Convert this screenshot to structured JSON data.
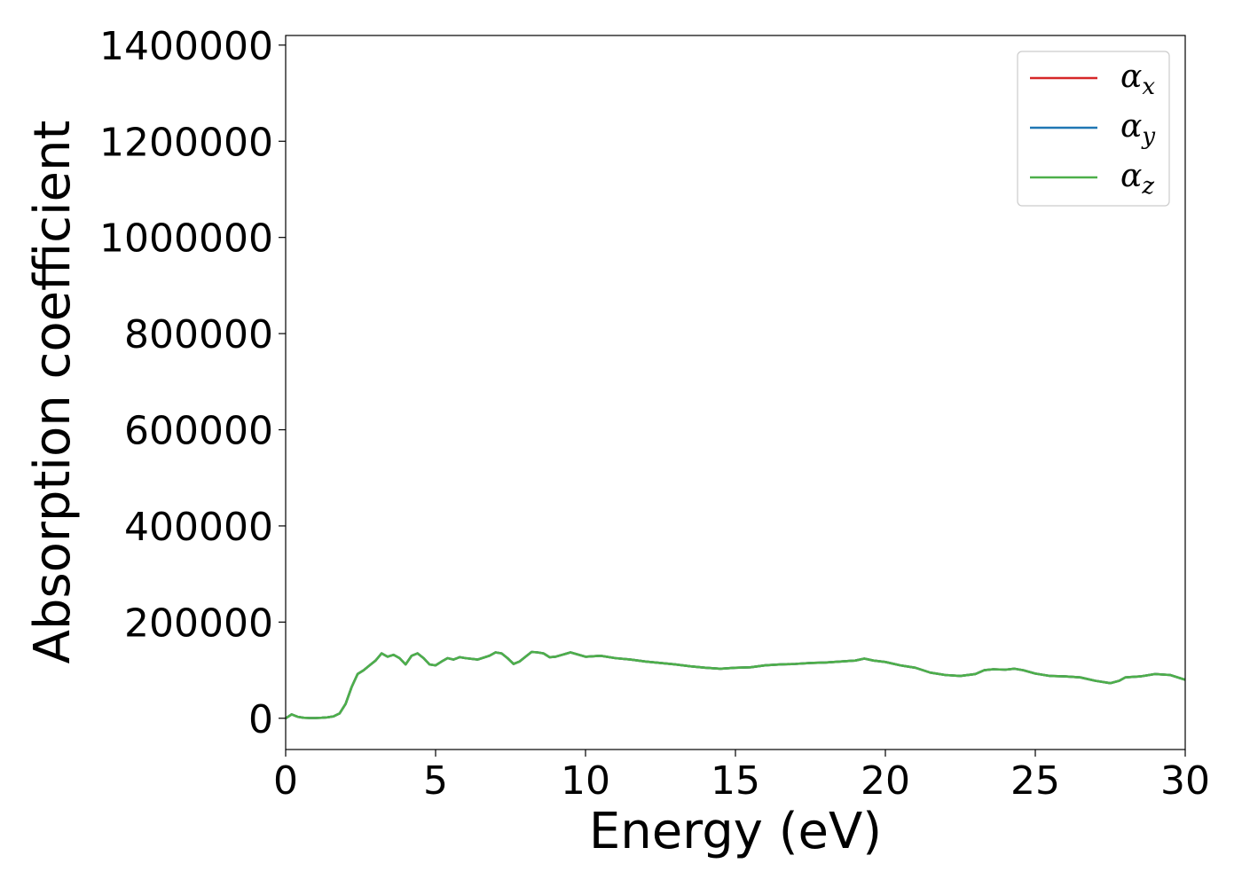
{
  "chart_data": {
    "type": "line",
    "title": "",
    "xlabel": "Energy (eV)",
    "ylabel": "Absorption coefficient",
    "xlim": [
      0,
      30
    ],
    "ylim": [
      -65000,
      1420000
    ],
    "xticks": [
      0,
      5,
      10,
      15,
      20,
      25,
      30
    ],
    "yticks": [
      0,
      200000,
      400000,
      600000,
      800000,
      1000000,
      1200000,
      1400000
    ],
    "grid": false,
    "legend_position": "top-right",
    "x": [
      0,
      0.2,
      0.4,
      0.6,
      0.8,
      1.0,
      1.2,
      1.4,
      1.6,
      1.8,
      2.0,
      2.2,
      2.4,
      2.6,
      2.8,
      3.0,
      3.2,
      3.4,
      3.6,
      3.8,
      4.0,
      4.2,
      4.4,
      4.6,
      4.8,
      5.0,
      5.2,
      5.4,
      5.6,
      5.8,
      6.0,
      6.4,
      6.8,
      7.0,
      7.2,
      7.4,
      7.6,
      7.8,
      8.0,
      8.2,
      8.4,
      8.6,
      8.8,
      9.0,
      9.5,
      10.0,
      10.5,
      11.0,
      11.5,
      12.0,
      12.5,
      13.0,
      13.5,
      14.0,
      14.5,
      15.0,
      15.5,
      16.0,
      16.5,
      17.0,
      17.5,
      18.0,
      18.5,
      19.0,
      19.3,
      19.6,
      20.0,
      20.5,
      21.0,
      21.5,
      22.0,
      22.5,
      23.0,
      23.3,
      23.6,
      24.0,
      24.3,
      24.6,
      25.0,
      25.5,
      26.0,
      26.5,
      27.0,
      27.5,
      27.8,
      28.0,
      28.5,
      29.0,
      29.5,
      30.0
    ],
    "series": [
      {
        "name": "α",
        "subscript": "x",
        "color": "#d62728",
        "values": [
          0,
          8000,
          3000,
          1000,
          500,
          500,
          1000,
          2000,
          4000,
          10000,
          30000,
          65000,
          92000,
          100000,
          110000,
          120000,
          135000,
          128000,
          132000,
          125000,
          112000,
          130000,
          135000,
          125000,
          112000,
          110000,
          118000,
          125000,
          122000,
          127000,
          125000,
          122000,
          130000,
          137000,
          135000,
          125000,
          113000,
          118000,
          128000,
          138000,
          137000,
          135000,
          127000,
          128000,
          137000,
          128000,
          130000,
          125000,
          122000,
          118000,
          115000,
          112000,
          108000,
          105000,
          103000,
          105000,
          106000,
          110000,
          112000,
          113000,
          115000,
          116000,
          118000,
          120000,
          124000,
          120000,
          117000,
          110000,
          105000,
          95000,
          90000,
          88000,
          92000,
          100000,
          102000,
          101000,
          103000,
          100000,
          93000,
          88000,
          87000,
          85000,
          78000,
          73000,
          78000,
          85000,
          87000,
          92000,
          90000,
          80000
        ]
      },
      {
        "name": "α",
        "subscript": "y",
        "color": "#1f77b4",
        "values": [
          0,
          8000,
          3000,
          1000,
          500,
          500,
          1000,
          2000,
          4000,
          10000,
          30000,
          65000,
          92000,
          100000,
          110000,
          120000,
          135000,
          128000,
          132000,
          125000,
          112000,
          130000,
          135000,
          125000,
          112000,
          110000,
          118000,
          125000,
          122000,
          127000,
          125000,
          122000,
          130000,
          137000,
          135000,
          125000,
          113000,
          118000,
          128000,
          138000,
          137000,
          135000,
          127000,
          128000,
          137000,
          128000,
          130000,
          125000,
          122000,
          118000,
          115000,
          112000,
          108000,
          105000,
          103000,
          105000,
          106000,
          110000,
          112000,
          113000,
          115000,
          116000,
          118000,
          120000,
          124000,
          120000,
          117000,
          110000,
          105000,
          95000,
          90000,
          88000,
          92000,
          100000,
          102000,
          101000,
          103000,
          100000,
          93000,
          88000,
          87000,
          85000,
          78000,
          73000,
          78000,
          85000,
          87000,
          92000,
          90000,
          80000
        ]
      },
      {
        "name": "α",
        "subscript": "z",
        "color": "#4daf4a",
        "values": [
          0,
          8000,
          3000,
          1000,
          500,
          500,
          1000,
          2000,
          4000,
          10000,
          30000,
          65000,
          92000,
          100000,
          110000,
          120000,
          135000,
          128000,
          132000,
          125000,
          112000,
          130000,
          135000,
          125000,
          112000,
          110000,
          118000,
          125000,
          122000,
          127000,
          125000,
          122000,
          130000,
          137000,
          135000,
          125000,
          113000,
          118000,
          128000,
          138000,
          137000,
          135000,
          127000,
          128000,
          137000,
          128000,
          130000,
          125000,
          122000,
          118000,
          115000,
          112000,
          108000,
          105000,
          103000,
          105000,
          106000,
          110000,
          112000,
          113000,
          115000,
          116000,
          118000,
          120000,
          124000,
          120000,
          117000,
          110000,
          105000,
          95000,
          90000,
          88000,
          92000,
          100000,
          102000,
          101000,
          103000,
          100000,
          93000,
          88000,
          87000,
          85000,
          78000,
          73000,
          78000,
          85000,
          87000,
          92000,
          90000,
          80000
        ]
      }
    ]
  }
}
